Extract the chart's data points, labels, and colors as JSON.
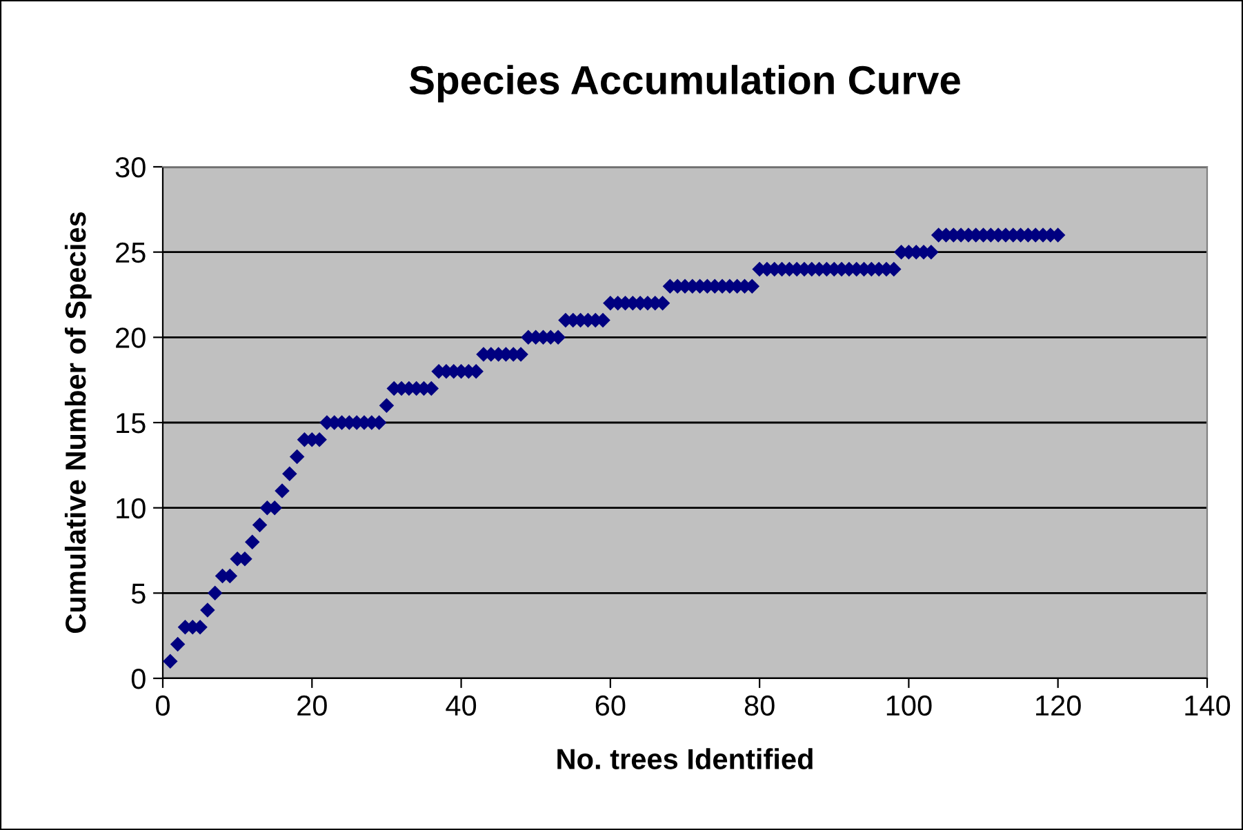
{
  "chart_data": {
    "type": "scatter",
    "title": "Species Accumulation Curve",
    "xlabel": "No. trees Identified",
    "ylabel": "Cumulative Number of Species",
    "x": [
      1,
      2,
      3,
      4,
      5,
      6,
      7,
      8,
      9,
      10,
      11,
      12,
      13,
      14,
      15,
      16,
      17,
      18,
      19,
      20,
      21,
      22,
      23,
      24,
      25,
      26,
      27,
      28,
      29,
      30,
      31,
      32,
      33,
      34,
      35,
      36,
      37,
      38,
      39,
      40,
      41,
      42,
      43,
      44,
      45,
      46,
      47,
      48,
      49,
      50,
      51,
      52,
      53,
      54,
      55,
      56,
      57,
      58,
      59,
      60,
      61,
      62,
      63,
      64,
      65,
      66,
      67,
      68,
      69,
      70,
      71,
      72,
      73,
      74,
      75,
      76,
      77,
      78,
      79,
      80,
      81,
      82,
      83,
      84,
      85,
      86,
      87,
      88,
      89,
      90,
      91,
      92,
      93,
      94,
      95,
      96,
      97,
      98,
      99,
      100,
      101,
      102,
      103,
      104,
      105,
      106,
      107,
      108,
      109,
      110,
      111,
      112,
      113,
      114,
      115,
      116,
      117,
      118,
      119,
      120
    ],
    "series": [
      {
        "color": "#000080",
        "values": [
          1,
          2,
          3,
          3,
          3,
          4,
          5,
          6,
          6,
          7,
          7,
          8,
          9,
          10,
          10,
          11,
          12,
          13,
          14,
          14,
          14,
          15,
          15,
          15,
          15,
          15,
          15,
          15,
          15,
          16,
          17,
          17,
          17,
          17,
          17,
          17,
          18,
          18,
          18,
          18,
          18,
          18,
          19,
          19,
          19,
          19,
          19,
          19,
          20,
          20,
          20,
          20,
          20,
          21,
          21,
          21,
          21,
          21,
          21,
          22,
          22,
          22,
          22,
          22,
          22,
          22,
          22,
          23,
          23,
          23,
          23,
          23,
          23,
          23,
          23,
          23,
          23,
          23,
          23,
          24,
          24,
          24,
          24,
          24,
          24,
          24,
          24,
          24,
          24,
          24,
          24,
          24,
          24,
          24,
          24,
          24,
          24,
          24,
          25,
          25,
          25,
          25,
          25,
          26,
          26,
          26,
          26,
          26,
          26,
          26,
          26,
          26,
          26,
          26,
          26,
          26,
          26,
          26,
          26,
          26
        ]
      }
    ],
    "xlim": [
      0,
      140
    ],
    "xticks": [
      0,
      20,
      40,
      60,
      80,
      100,
      120,
      140
    ],
    "ylim": [
      0,
      30
    ],
    "yticks": [
      0,
      5,
      10,
      15,
      20,
      25,
      30
    ],
    "grid": "y",
    "marker": "diamond"
  }
}
